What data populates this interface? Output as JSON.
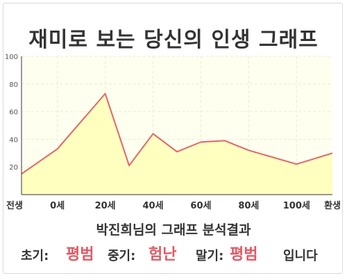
{
  "title": "재미로 보는 당신의 인생 그래프",
  "summary": "박진희님의 그래프 분석결과",
  "result": {
    "early_label": "초기:",
    "early_value": "평범",
    "middle_label": "중기:",
    "middle_value": "험난",
    "late_label": "말기:",
    "late_value": "평범",
    "suffix": "입니다"
  },
  "colors": {
    "line": "#e06666",
    "fill": "#ffffc0",
    "plot_bg": "#fffff0",
    "grid": "#ebebd6",
    "value_highlight": "#e05a64"
  },
  "chart_data": {
    "type": "area",
    "categories": [
      "전생",
      "0세",
      "20세",
      "40세",
      "60세",
      "80세",
      "100세",
      "환생"
    ],
    "x": [
      -15,
      0,
      20,
      30,
      40,
      50,
      60,
      70,
      80,
      100,
      115
    ],
    "values": [
      15,
      33,
      73,
      21,
      44,
      31,
      38,
      39,
      32,
      22,
      30
    ],
    "ylim": [
      0,
      100
    ],
    "yticks": [
      20,
      40,
      60,
      80,
      100
    ],
    "grid": true,
    "legend": "none"
  }
}
